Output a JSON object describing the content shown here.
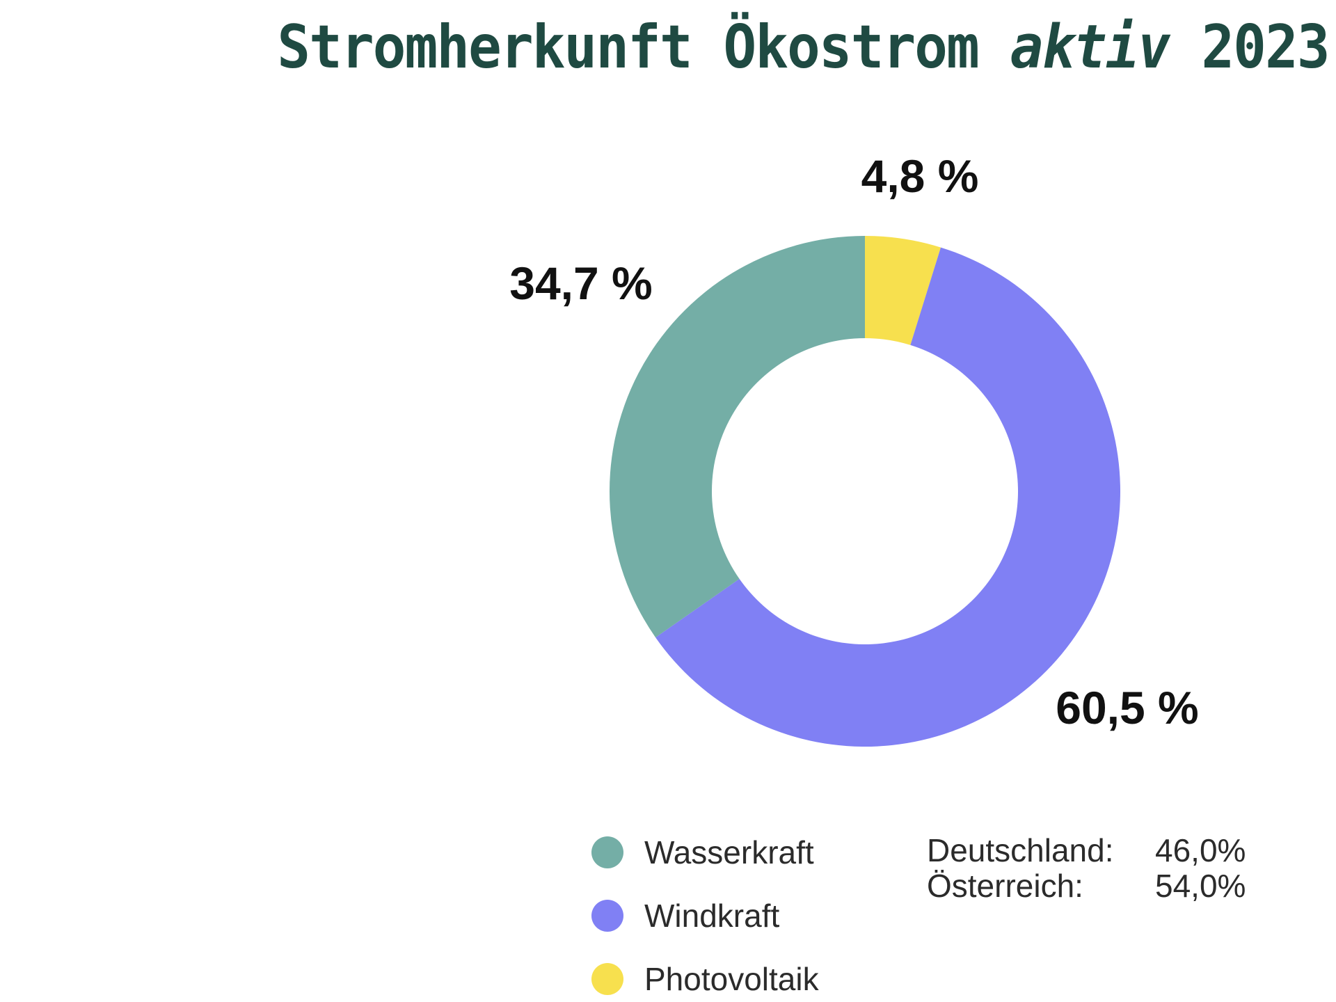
{
  "title": {
    "main": "Stromherkunft Ökostrom",
    "italic": "aktiv",
    "year": "2023"
  },
  "chart_data": {
    "type": "pie",
    "donut": true,
    "categories": [
      "Wasserkraft",
      "Windkraft",
      "Photovoltaik"
    ],
    "values": [
      34.7,
      60.5,
      4.8
    ],
    "labels": [
      "34,7 %",
      "60,5 %",
      "4,8 %"
    ],
    "colors": [
      "#74aea6",
      "#8080f4",
      "#f7e04e"
    ],
    "legend_position": "bottom"
  },
  "legend": [
    {
      "label": "Wasserkraft",
      "color": "#74aea6"
    },
    {
      "label": "Windkraft",
      "color": "#8080f4"
    },
    {
      "label": "Photovoltaik",
      "color": "#f7e04e"
    }
  ],
  "stats": [
    {
      "label": "Deutschland:",
      "value": "46,0%"
    },
    {
      "label": "Österreich:",
      "value": "54,0%"
    }
  ]
}
